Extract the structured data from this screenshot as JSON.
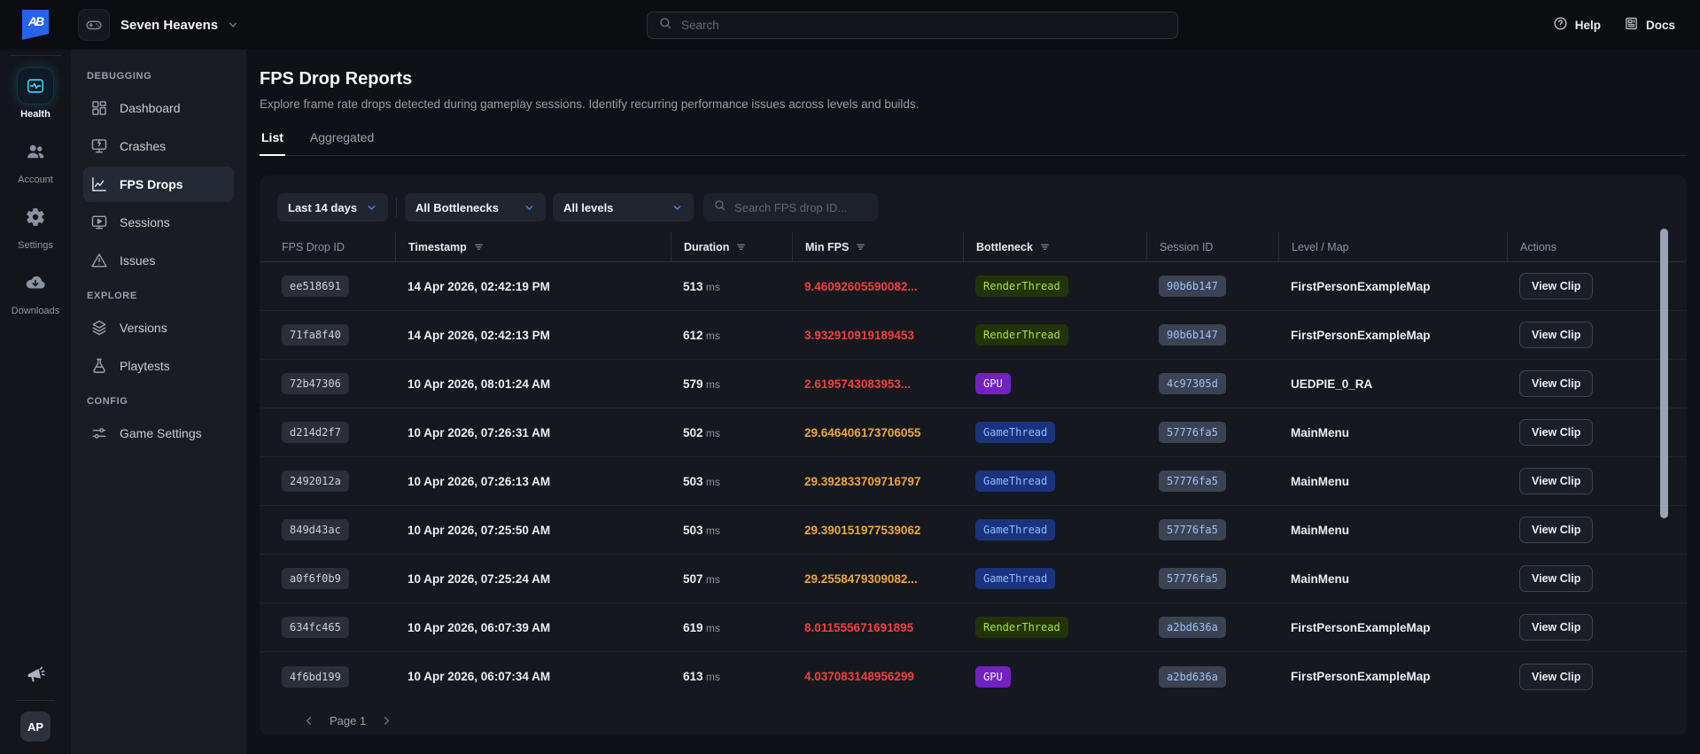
{
  "topbar": {
    "logo_text": "AB",
    "project_name": "Seven Heavens",
    "search_placeholder": "Search",
    "help_label": "Help",
    "docs_label": "Docs"
  },
  "rail": {
    "items": [
      {
        "label": "Health",
        "icon": "health-icon",
        "active": true
      },
      {
        "label": "Account",
        "icon": "account-icon",
        "active": false
      },
      {
        "label": "Settings",
        "icon": "settings-icon",
        "active": false
      },
      {
        "label": "Downloads",
        "icon": "downloads-icon",
        "active": false
      }
    ],
    "avatar_initials": "AP"
  },
  "sidebar": {
    "sections": [
      {
        "label": "DEBUGGING",
        "items": [
          {
            "label": "Dashboard",
            "icon": "dashboard-icon",
            "active": false
          },
          {
            "label": "Crashes",
            "icon": "crashes-icon",
            "active": false
          },
          {
            "label": "FPS Drops",
            "icon": "fps-drops-icon",
            "active": true
          },
          {
            "label": "Sessions",
            "icon": "sessions-icon",
            "active": false
          },
          {
            "label": "Issues",
            "icon": "issues-icon",
            "active": false
          }
        ]
      },
      {
        "label": "EXPLORE",
        "items": [
          {
            "label": "Versions",
            "icon": "versions-icon",
            "active": false
          },
          {
            "label": "Playtests",
            "icon": "playtests-icon",
            "active": false
          }
        ]
      },
      {
        "label": "CONFIG",
        "items": [
          {
            "label": "Game Settings",
            "icon": "game-settings-icon",
            "active": false
          }
        ]
      }
    ]
  },
  "main": {
    "title": "FPS Drop Reports",
    "subtitle": "Explore frame rate drops detected during gameplay sessions. Identify recurring performance issues across levels and builds.",
    "tabs": [
      {
        "label": "List",
        "active": true
      },
      {
        "label": "Aggregated",
        "active": false
      }
    ],
    "filters": {
      "date_range": "Last 14 days",
      "bottleneck": "All Bottlenecks",
      "level": "All levels",
      "search_placeholder": "Search FPS drop ID..."
    },
    "table": {
      "columns": [
        {
          "label": "FPS Drop ID",
          "sortable": false
        },
        {
          "label": "Timestamp",
          "sortable": true
        },
        {
          "label": "Duration",
          "sortable": true
        },
        {
          "label": "Min FPS",
          "sortable": true
        },
        {
          "label": "Bottleneck",
          "sortable": true
        },
        {
          "label": "Session ID",
          "sortable": false
        },
        {
          "label": "Level / Map",
          "sortable": false
        },
        {
          "label": "Actions",
          "sortable": false
        }
      ],
      "duration_unit": "ms",
      "rows": [
        {
          "id": "ee518691",
          "timestamp": "14 Apr 2026, 02:42:19 PM",
          "duration": "513",
          "min_fps": "9.46092605590082...",
          "severity": "critical",
          "bottleneck": "RenderThread",
          "session_id": "90b6b147",
          "level": "FirstPersonExampleMap",
          "action": "View Clip"
        },
        {
          "id": "71fa8f40",
          "timestamp": "14 Apr 2026, 02:42:13 PM",
          "duration": "612",
          "min_fps": "3.932910919189453",
          "severity": "critical",
          "bottleneck": "RenderThread",
          "session_id": "90b6b147",
          "level": "FirstPersonExampleMap",
          "action": "View Clip"
        },
        {
          "id": "72b47306",
          "timestamp": "10 Apr 2026, 08:01:24 AM",
          "duration": "579",
          "min_fps": "2.6195743083953...",
          "severity": "critical",
          "bottleneck": "GPU",
          "session_id": "4c97305d",
          "level": "UEDPIE_0_RA",
          "action": "View Clip"
        },
        {
          "id": "d214d2f7",
          "timestamp": "10 Apr 2026, 07:26:31 AM",
          "duration": "502",
          "min_fps": "29.646406173706055",
          "severity": "warning",
          "bottleneck": "GameThread",
          "session_id": "57776fa5",
          "level": "MainMenu",
          "action": "View Clip"
        },
        {
          "id": "2492012a",
          "timestamp": "10 Apr 2026, 07:26:13 AM",
          "duration": "503",
          "min_fps": "29.392833709716797",
          "severity": "warning",
          "bottleneck": "GameThread",
          "session_id": "57776fa5",
          "level": "MainMenu",
          "action": "View Clip"
        },
        {
          "id": "849d43ac",
          "timestamp": "10 Apr 2026, 07:25:50 AM",
          "duration": "503",
          "min_fps": "29.390151977539062",
          "severity": "warning",
          "bottleneck": "GameThread",
          "session_id": "57776fa5",
          "level": "MainMenu",
          "action": "View Clip"
        },
        {
          "id": "a0f6f0b9",
          "timestamp": "10 Apr 2026, 07:25:24 AM",
          "duration": "507",
          "min_fps": "29.2558479309082...",
          "severity": "warning",
          "bottleneck": "GameThread",
          "session_id": "57776fa5",
          "level": "MainMenu",
          "action": "View Clip"
        },
        {
          "id": "634fc465",
          "timestamp": "10 Apr 2026, 06:07:39 AM",
          "duration": "619",
          "min_fps": "8.011555671691895",
          "severity": "critical",
          "bottleneck": "RenderThread",
          "session_id": "a2bd636a",
          "level": "FirstPersonExampleMap",
          "action": "View Clip"
        },
        {
          "id": "4f6bd199",
          "timestamp": "10 Apr 2026, 06:07:34 AM",
          "duration": "613",
          "min_fps": "4.037083148956299",
          "severity": "critical",
          "bottleneck": "GPU",
          "session_id": "a2bd636a",
          "level": "FirstPersonExampleMap",
          "action": "View Clip"
        }
      ]
    },
    "pagination": {
      "label": "Page 1"
    }
  },
  "colors": {
    "accent_blue": "#4c82f7",
    "critical_fps": "#f1403f",
    "warning_fps": "#eda73b",
    "badge_renderthread_text": "#a3e635",
    "badge_gpu_bg": "#7222c2",
    "badge_gamethread_text": "#93bbfd",
    "logo_bg": "#2563eb"
  }
}
